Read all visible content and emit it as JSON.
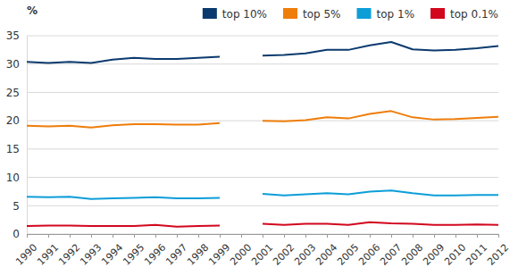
{
  "chart_data": {
    "type": "line",
    "y_label": "%",
    "x": [
      1990,
      1991,
      1992,
      1993,
      1994,
      1995,
      1996,
      1997,
      1998,
      1999,
      2000,
      2001,
      2002,
      2003,
      2004,
      2005,
      2006,
      2007,
      2008,
      2009,
      2010,
      2011,
      2012
    ],
    "series": [
      {
        "name": "top 10%",
        "color": "#0b3a6e",
        "values": [
          30.4,
          30.2,
          30.4,
          30.2,
          30.8,
          31.1,
          30.9,
          30.9,
          31.1,
          31.3,
          null,
          31.5,
          31.6,
          31.9,
          32.5,
          32.5,
          33.3,
          33.9,
          32.6,
          32.4,
          32.5,
          32.8,
          33.2
        ]
      },
      {
        "name": "top 5%",
        "color": "#ef7d0a",
        "values": [
          19.1,
          19.0,
          19.1,
          18.8,
          19.2,
          19.4,
          19.4,
          19.3,
          19.3,
          19.6,
          null,
          20.0,
          19.9,
          20.1,
          20.6,
          20.4,
          21.2,
          21.7,
          20.6,
          20.2,
          20.3,
          20.5,
          20.7
        ]
      },
      {
        "name": "top 1%",
        "color": "#0d9ed8",
        "values": [
          6.6,
          6.5,
          6.6,
          6.2,
          6.3,
          6.4,
          6.5,
          6.3,
          6.3,
          6.4,
          null,
          7.1,
          6.8,
          7.0,
          7.2,
          7.0,
          7.5,
          7.7,
          7.2,
          6.8,
          6.8,
          6.9,
          6.9
        ]
      },
      {
        "name": "top 0.1%",
        "color": "#d2071e",
        "values": [
          1.4,
          1.5,
          1.5,
          1.4,
          1.4,
          1.4,
          1.6,
          1.3,
          1.4,
          1.5,
          null,
          1.8,
          1.6,
          1.8,
          1.8,
          1.6,
          2.1,
          1.9,
          1.8,
          1.6,
          1.6,
          1.7,
          1.6
        ]
      }
    ],
    "xlim": [
      1990,
      2012
    ],
    "xticks": [
      1990,
      1991,
      1992,
      1993,
      1994,
      1995,
      1996,
      1997,
      1998,
      1999,
      2000,
      2001,
      2002,
      2003,
      2004,
      2005,
      2006,
      2007,
      2008,
      2009,
      2010,
      2011,
      2012
    ],
    "ylim": [
      0,
      35
    ],
    "yticks": [
      0,
      5,
      10,
      15,
      20,
      25,
      30,
      35
    ],
    "grid": true,
    "legend": "top"
  }
}
